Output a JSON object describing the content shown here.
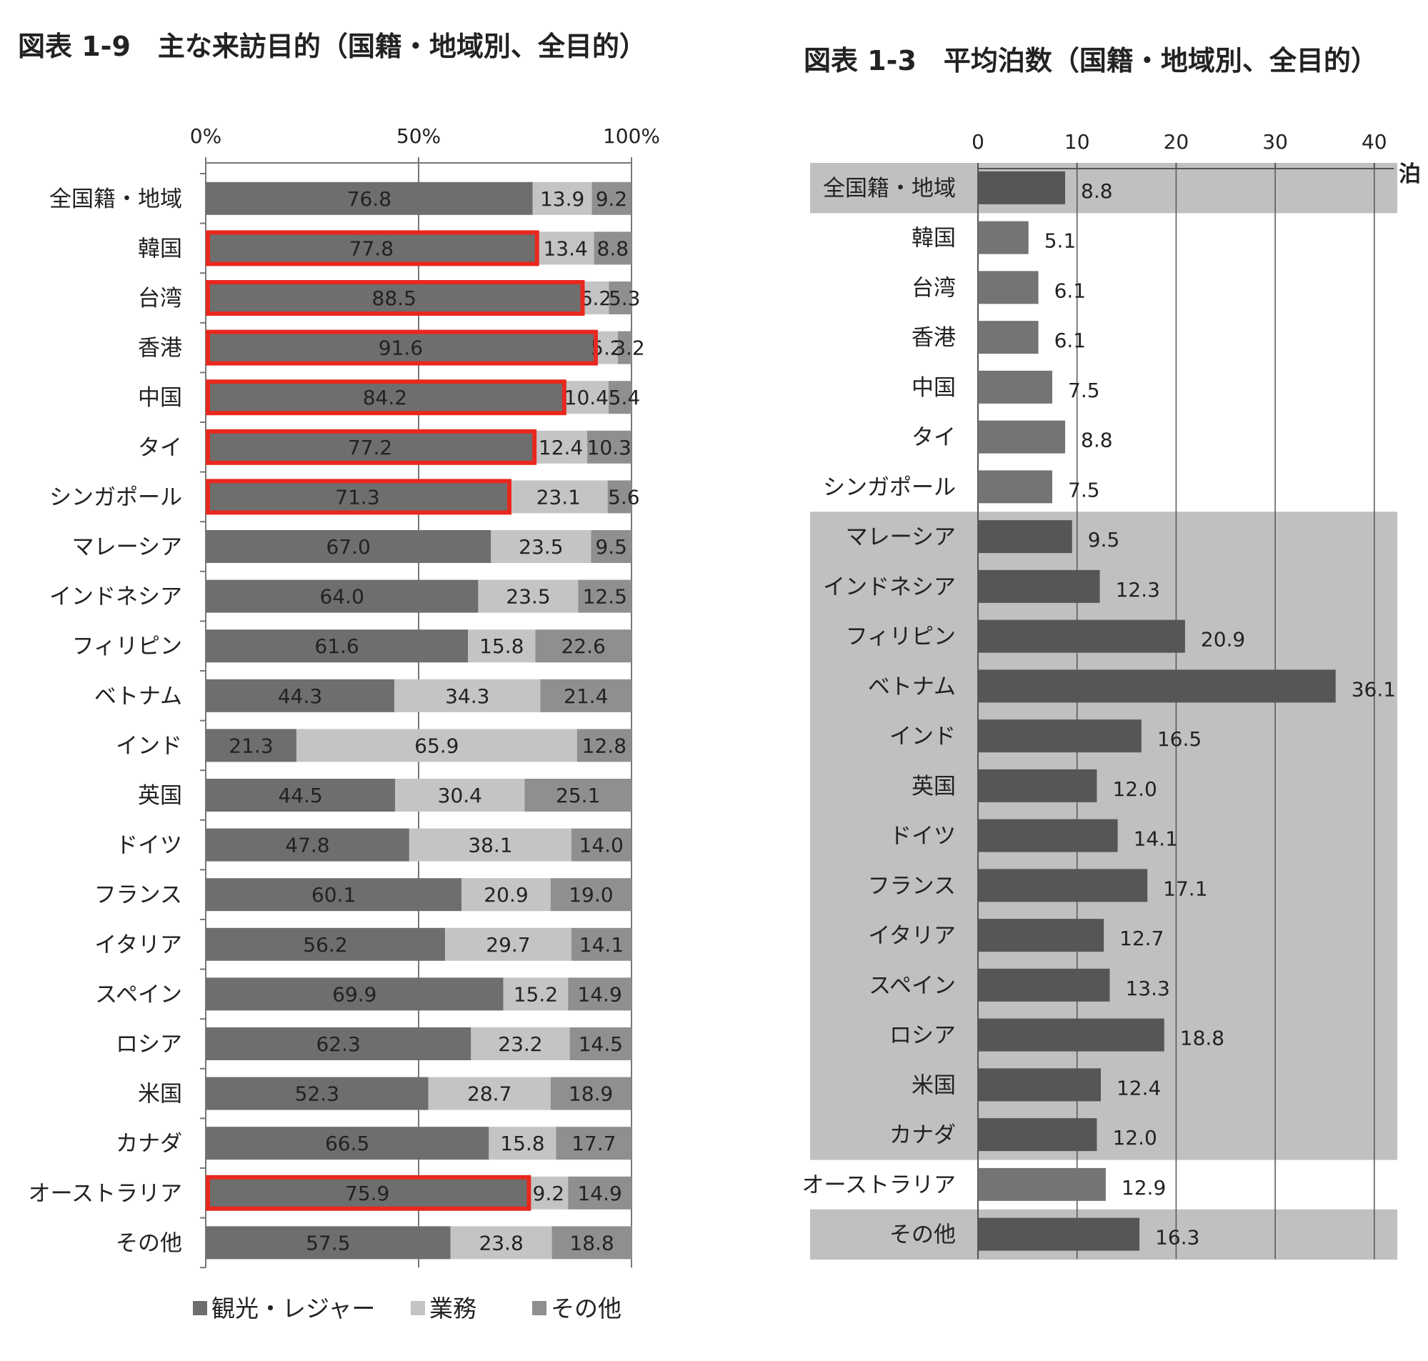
{
  "colors": {
    "leisure": "#6e6e6e",
    "business": "#c4c4c4",
    "other": "#8f8f8f",
    "highlight": "#e8281e",
    "nights_dark": "#565656",
    "nights_light": "#747474",
    "band": "#c0c0c0",
    "axis": "#777777",
    "grid": "#555555"
  },
  "chart_data": [
    {
      "type": "bar",
      "stacked": true,
      "orientation": "horizontal",
      "title": "図表 1-9　主な来訪目的（国籍・地域別、全目的）",
      "x_ticks": [
        "0%",
        "50%",
        "100%"
      ],
      "xlim": [
        0,
        100
      ],
      "legend_position": "bottom",
      "categories": [
        "全国籍・地域",
        "韓国",
        "台湾",
        "香港",
        "中国",
        "タイ",
        "シンガポール",
        "マレーシア",
        "インドネシア",
        "フィリピン",
        "ベトナム",
        "インド",
        "英国",
        "ドイツ",
        "フランス",
        "イタリア",
        "スペイン",
        "ロシア",
        "米国",
        "カナダ",
        "オーストラリア",
        "その他"
      ],
      "series": [
        {
          "name": "観光・レジャー",
          "values": [
            76.8,
            77.8,
            88.5,
            91.6,
            84.2,
            77.2,
            71.3,
            67.0,
            64.0,
            61.6,
            44.3,
            21.3,
            44.5,
            47.8,
            60.1,
            56.2,
            69.9,
            62.3,
            52.3,
            66.5,
            75.9,
            57.5
          ],
          "labels": [
            "76.8",
            "77.8",
            "88.5",
            "91.6",
            "84.2",
            "77.2",
            "71.3",
            "67.0",
            "64.0",
            "61.6",
            "44.3",
            "21.3",
            "44.5",
            "47.8",
            "60.1",
            "56.2",
            "69.9",
            "62.3",
            "52.3",
            "66.5",
            "75.9",
            "57.5"
          ]
        },
        {
          "name": "業務",
          "values": [
            13.9,
            13.4,
            6.2,
            5.2,
            10.4,
            12.4,
            23.1,
            23.5,
            23.5,
            15.8,
            34.3,
            65.9,
            30.4,
            38.1,
            20.9,
            29.7,
            15.2,
            23.2,
            28.7,
            15.8,
            9.2,
            23.8
          ],
          "labels": [
            "13.9",
            "13.4",
            "6.2",
            "5.2",
            "10.4",
            "12.4",
            "23.1",
            "23.5",
            "23.5",
            "15.8",
            "34.3",
            "65.9",
            "30.4",
            "38.1",
            "20.9",
            "29.7",
            "15.2",
            "23.2",
            "28.7",
            "15.8",
            "9.2",
            "23.8"
          ]
        },
        {
          "name": "その他",
          "values": [
            9.2,
            8.8,
            5.3,
            3.2,
            5.4,
            10.3,
            5.6,
            9.5,
            12.5,
            22.6,
            21.4,
            12.8,
            25.1,
            14.0,
            19.0,
            14.1,
            14.9,
            14.5,
            18.9,
            17.7,
            14.9,
            18.8
          ],
          "labels": [
            "9.2",
            "8.8",
            "5.3",
            "3.2",
            "5.4",
            "10.3",
            "5.6",
            "9.5",
            "12.5",
            "22.6",
            "21.4",
            "12.8",
            "25.1",
            "14.0",
            "19.0",
            "14.1",
            "14.9",
            "14.5",
            "18.9",
            "17.7",
            "14.9",
            "18.8"
          ]
        }
      ],
      "highlighted": [
        false,
        true,
        true,
        true,
        true,
        true,
        true,
        false,
        false,
        false,
        false,
        false,
        false,
        false,
        false,
        false,
        false,
        false,
        false,
        false,
        true,
        false
      ]
    },
    {
      "type": "bar",
      "orientation": "horizontal",
      "title": "図表 1-3　平均泊数（国籍・地域別、全目的）",
      "unit": "泊",
      "x_ticks": [
        "0",
        "10",
        "20",
        "30",
        "40"
      ],
      "x_tick_values": [
        0,
        10,
        20,
        30,
        40
      ],
      "xlim": [
        0,
        42
      ],
      "grid": true,
      "categories": [
        "全国籍・地域",
        "韓国",
        "台湾",
        "香港",
        "中国",
        "タイ",
        "シンガポール",
        "マレーシア",
        "インドネシア",
        "フィリピン",
        "ベトナム",
        "インド",
        "英国",
        "ドイツ",
        "フランス",
        "イタリア",
        "スペイン",
        "ロシア",
        "米国",
        "カナダ",
        "オーストラリア",
        "その他"
      ],
      "values": [
        8.8,
        5.1,
        6.1,
        6.1,
        7.5,
        8.8,
        7.5,
        9.5,
        12.3,
        20.9,
        36.1,
        16.5,
        12.0,
        14.1,
        17.1,
        12.7,
        13.3,
        18.8,
        12.4,
        12.0,
        12.9,
        16.3
      ],
      "labels": [
        "8.8",
        "5.1",
        "6.1",
        "6.1",
        "7.5",
        "8.8",
        "7.5",
        "9.5",
        "12.3",
        "20.9",
        "36.1",
        "16.5",
        "12.0",
        "14.1",
        "17.1",
        "12.7",
        "13.3",
        "18.8",
        "12.4",
        "12.0",
        "12.9",
        "16.3"
      ],
      "shaded": [
        true,
        false,
        false,
        false,
        false,
        false,
        false,
        true,
        true,
        true,
        true,
        true,
        true,
        true,
        true,
        true,
        true,
        true,
        true,
        true,
        false,
        true
      ]
    }
  ]
}
